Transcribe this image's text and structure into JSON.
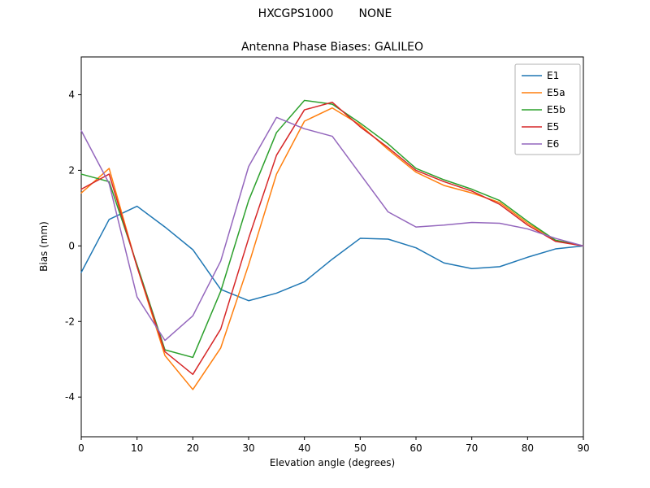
{
  "figure": {
    "suptitle": "HXCGPS1000       NONE",
    "background": "#ffffff"
  },
  "chart_data": {
    "type": "line",
    "title": "Antenna Phase Biases: GALILEO",
    "xlabel": "Elevation angle (degrees)",
    "ylabel": "Bias (mm)",
    "xlim": [
      0,
      90
    ],
    "ylim": [
      -5.05,
      5.0
    ],
    "x_ticks": [
      0,
      10,
      20,
      30,
      40,
      50,
      60,
      70,
      80,
      90
    ],
    "y_ticks": [
      -4,
      -2,
      0,
      2,
      4
    ],
    "grid": false,
    "legend_position": "upper right",
    "x": [
      0,
      5,
      10,
      15,
      20,
      25,
      30,
      35,
      40,
      45,
      50,
      55,
      60,
      65,
      70,
      75,
      80,
      85,
      90
    ],
    "series": [
      {
        "name": "E1",
        "color": "#1f77b4",
        "values": [
          -0.7,
          0.7,
          1.05,
          0.5,
          -0.1,
          -1.15,
          -1.45,
          -1.25,
          -0.95,
          -0.35,
          0.2,
          0.18,
          -0.05,
          -0.45,
          -0.6,
          -0.55,
          -0.3,
          -0.08,
          0.0
        ]
      },
      {
        "name": "E5a",
        "color": "#ff7f0e",
        "values": [
          1.4,
          2.05,
          -0.55,
          -2.9,
          -3.8,
          -2.7,
          -0.5,
          1.9,
          3.3,
          3.65,
          3.2,
          2.55,
          1.95,
          1.6,
          1.4,
          1.15,
          0.6,
          0.15,
          0.0
        ]
      },
      {
        "name": "E5b",
        "color": "#2ca02c",
        "values": [
          1.9,
          1.7,
          -0.5,
          -2.75,
          -2.95,
          -1.2,
          1.2,
          3.0,
          3.85,
          3.75,
          3.25,
          2.7,
          2.05,
          1.75,
          1.5,
          1.2,
          0.65,
          0.15,
          0.0
        ]
      },
      {
        "name": "E5",
        "color": "#d62728",
        "values": [
          1.5,
          1.9,
          -0.55,
          -2.8,
          -3.4,
          -2.2,
          0.2,
          2.4,
          3.6,
          3.8,
          3.15,
          2.6,
          2.0,
          1.7,
          1.45,
          1.1,
          0.55,
          0.12,
          0.0
        ]
      },
      {
        "name": "E6",
        "color": "#9467bd",
        "values": [
          3.05,
          1.65,
          -1.35,
          -2.5,
          -1.85,
          -0.4,
          2.1,
          3.4,
          3.1,
          2.9,
          1.9,
          0.9,
          0.5,
          0.55,
          0.62,
          0.6,
          0.45,
          0.2,
          0.0
        ]
      }
    ]
  }
}
